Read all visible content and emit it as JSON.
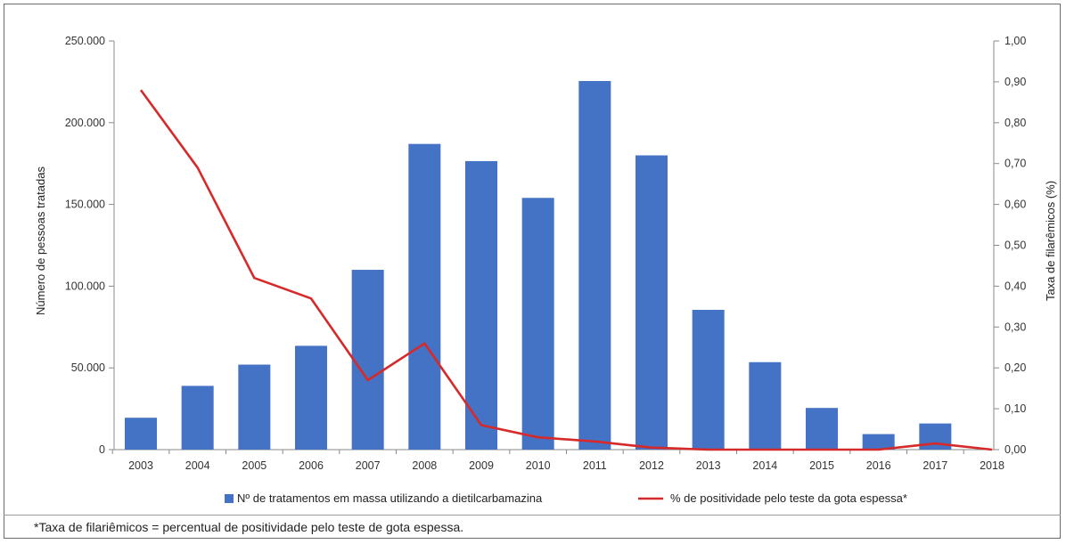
{
  "chart_data": {
    "type": "bar+line",
    "categories": [
      "2003",
      "2004",
      "2005",
      "2006",
      "2007",
      "2008",
      "2009",
      "2010",
      "2011",
      "2012",
      "2013",
      "2014",
      "2015",
      "2016",
      "2017",
      "2018"
    ],
    "series": [
      {
        "name": "Nº de tratamentos em massa utilizando a dietilcarbamazina",
        "type": "bar",
        "axis": "left",
        "color": "#4472c4",
        "values": [
          19500,
          39000,
          52000,
          63500,
          110000,
          187000,
          176500,
          154000,
          225500,
          180000,
          85500,
          53500,
          25500,
          9500,
          16000,
          0
        ]
      },
      {
        "name": "% de positividade pelo teste da gota espessa*",
        "type": "line",
        "axis": "right",
        "color": "#d62a2a",
        "values": [
          0.88,
          0.69,
          0.42,
          0.37,
          0.17,
          0.26,
          0.06,
          0.03,
          0.02,
          0.005,
          0.0,
          0.0,
          0.0,
          0.0,
          0.015,
          0.0
        ]
      }
    ],
    "ylabel": "Número de pessoas tratadas",
    "y2label": "Taxa de filarêmicos  (%)",
    "ylim": [
      0,
      250000
    ],
    "y2lim": [
      0,
      1.0
    ],
    "yticks": [
      "0",
      "50.000",
      "100.000",
      "150.000",
      "200.000",
      "250.000"
    ],
    "y2ticks": [
      "0,00",
      "0,10",
      "0,20",
      "0,30",
      "0,40",
      "0,50",
      "0,60",
      "0,70",
      "0,80",
      "0,90",
      "1,00"
    ],
    "legend_position": "bottom",
    "grid": false
  },
  "footnote": "*Taxa de filariêmicos = percentual de positividade pelo teste de gota espessa."
}
